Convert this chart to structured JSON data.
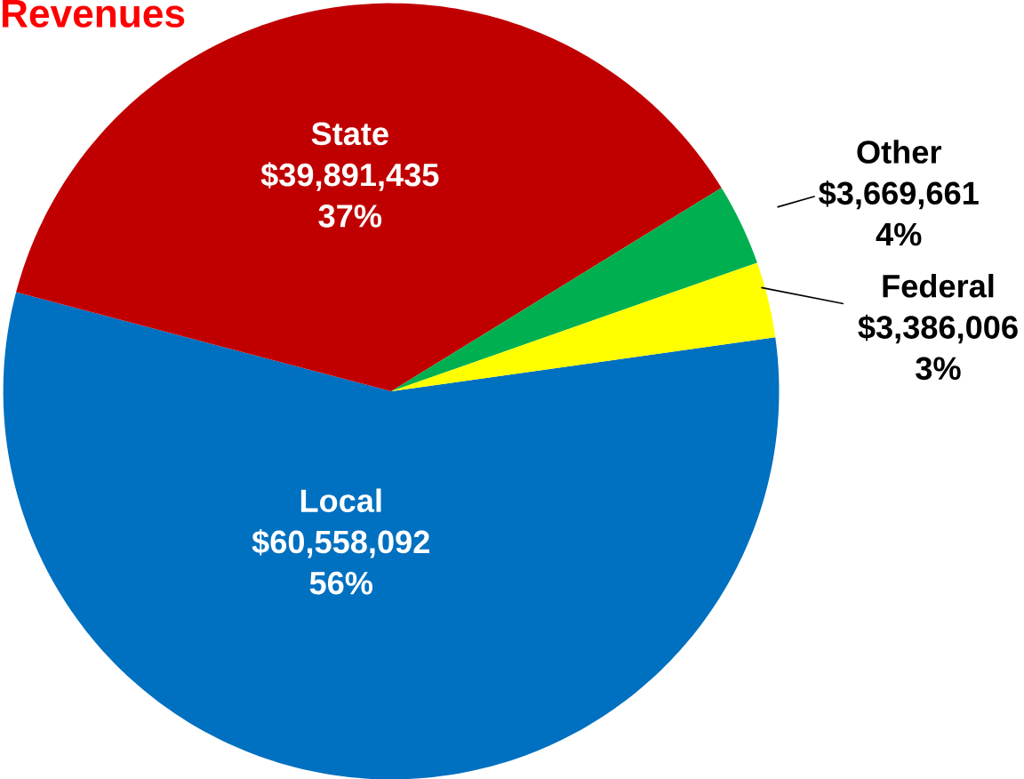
{
  "chart_data": {
    "type": "pie",
    "title": "Revenues",
    "categories": [
      "Local",
      "State",
      "Other",
      "Federal"
    ],
    "values": [
      60558092,
      39891435,
      3669661,
      3386006
    ],
    "colors": [
      "#0070c0",
      "#c00000",
      "#00b050",
      "#ffff00"
    ],
    "value_labels": [
      "$60,558,092 56%",
      "$39,891,435 37%",
      "$3,669,661 4%",
      "$3,386,006 3%"
    ]
  }
}
